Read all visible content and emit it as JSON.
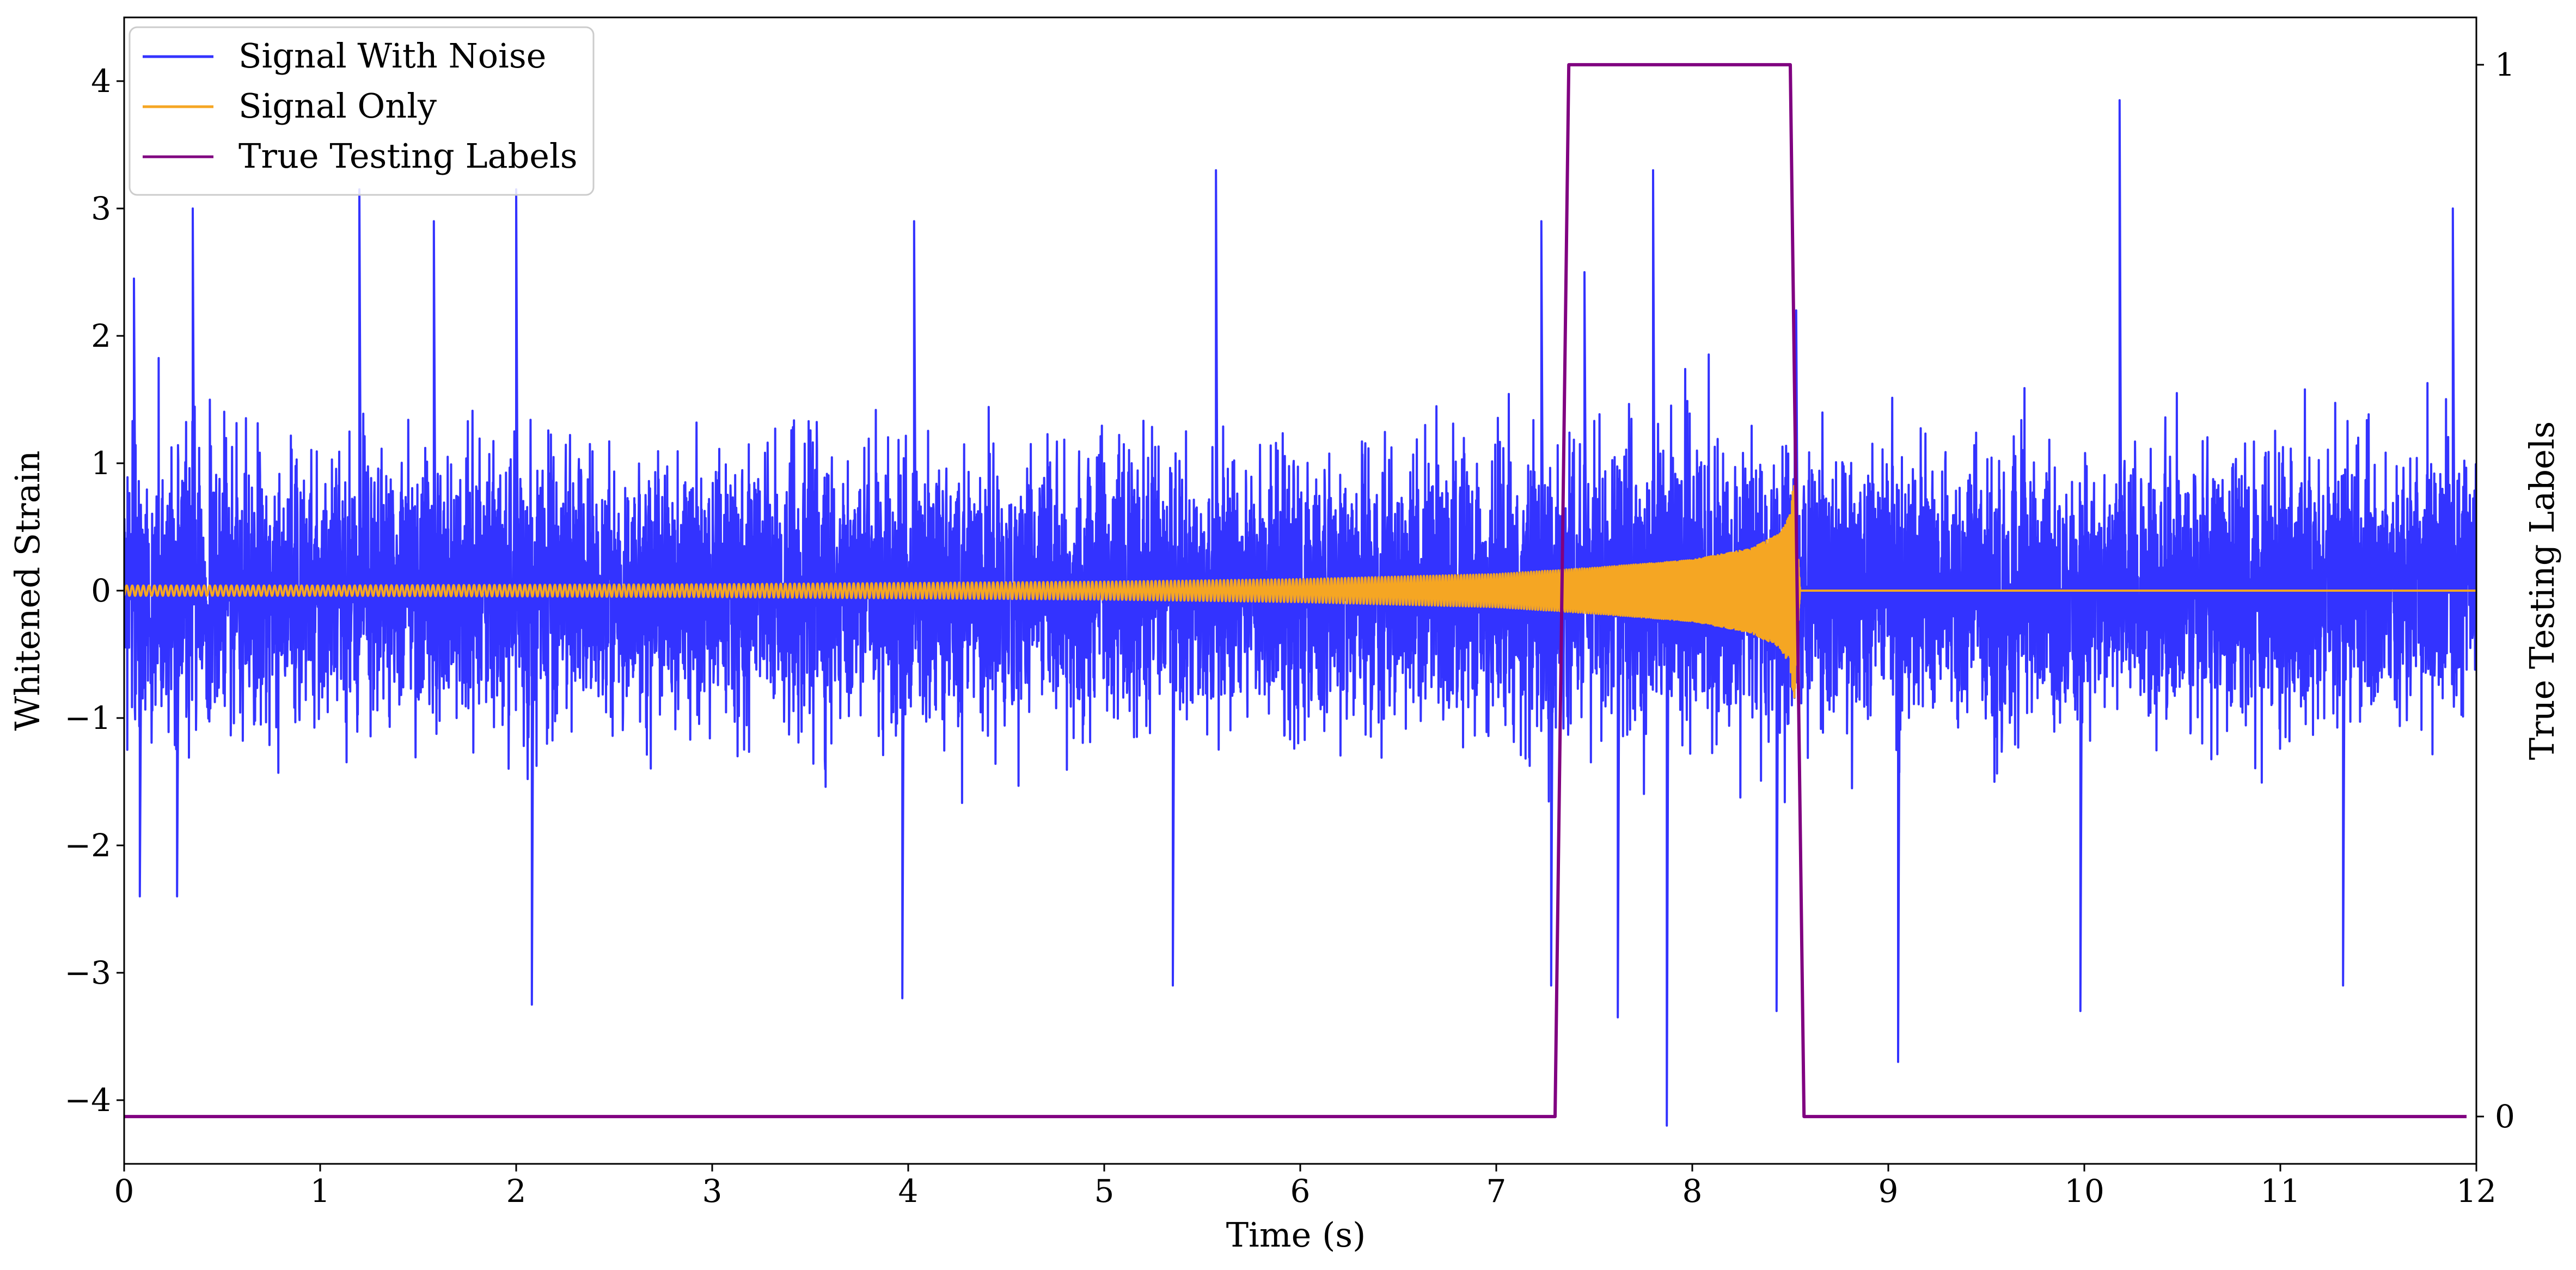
{
  "chart_data": {
    "type": "line",
    "title": "",
    "xlabel": "Time (s)",
    "ylabel": "Whitened Strain",
    "y2label": "True Testing Labels",
    "xlim": [
      0,
      12
    ],
    "ylim": [
      -4.5,
      4.5
    ],
    "y2lim": [
      -0.045,
      1.045
    ],
    "x_ticks": [
      0,
      1,
      2,
      3,
      4,
      5,
      6,
      7,
      8,
      9,
      10,
      11,
      12
    ],
    "y_ticks": [
      -4,
      -3,
      -2,
      -1,
      0,
      1,
      2,
      3,
      4
    ],
    "y_tick_labels": [
      "−4",
      "−3",
      "−2",
      "−1",
      "0",
      "1",
      "2",
      "3",
      "4"
    ],
    "y2_ticks": [
      0,
      1
    ],
    "grid": false,
    "legend_position": "top-left",
    "series": [
      {
        "name": "Signal With Noise",
        "color": "#3333ff",
        "axis": "left",
        "description_values": {
          "typical_range": [
            -2.5,
            2.5
          ],
          "max": 3.85,
          "min": -4.2,
          "extreme_peaks": [
            [
              0.05,
              2.45
            ],
            [
              0.08,
              -2.4
            ],
            [
              0.27,
              -2.4
            ],
            [
              0.35,
              3.0
            ],
            [
              1.2,
              3.15
            ],
            [
              1.58,
              2.9
            ],
            [
              2.0,
              3.15
            ],
            [
              2.08,
              -3.25
            ],
            [
              3.97,
              -3.2
            ],
            [
              4.03,
              2.9
            ],
            [
              5.57,
              3.3
            ],
            [
              5.35,
              -3.1
            ],
            [
              7.23,
              2.9
            ],
            [
              7.45,
              2.5
            ],
            [
              7.28,
              -3.1
            ],
            [
              7.8,
              3.3
            ],
            [
              7.87,
              -4.2
            ],
            [
              7.62,
              -3.35
            ],
            [
              8.53,
              2.2
            ],
            [
              8.43,
              -3.3
            ],
            [
              9.05,
              -3.7
            ],
            [
              10.18,
              3.85
            ],
            [
              9.98,
              -3.3
            ],
            [
              11.32,
              -3.1
            ],
            [
              11.88,
              3.0
            ]
          ]
        }
      },
      {
        "name": "Signal Only",
        "color": "#f5a623",
        "axis": "left",
        "description_values": {
          "envelope": [
            [
              0.0,
              0.04
            ],
            [
              1.0,
              0.04
            ],
            [
              2.0,
              0.045
            ],
            [
              3.0,
              0.05
            ],
            [
              4.0,
              0.06
            ],
            [
              5.0,
              0.07
            ],
            [
              6.0,
              0.09
            ],
            [
              7.0,
              0.13
            ],
            [
              7.5,
              0.18
            ],
            [
              8.0,
              0.24
            ],
            [
              8.3,
              0.33
            ],
            [
              8.45,
              0.45
            ],
            [
              8.5,
              0.6
            ],
            [
              8.52,
              0.9
            ],
            [
              8.55,
              0.0
            ],
            [
              12.0,
              0.0
            ]
          ]
        }
      },
      {
        "name": "True Testing Labels",
        "color": "#800080",
        "axis": "right",
        "x": [
          0,
          7.3,
          7.37,
          8.5,
          8.57,
          11.95
        ],
        "y": [
          0,
          0,
          1,
          1,
          0,
          0
        ]
      }
    ]
  }
}
